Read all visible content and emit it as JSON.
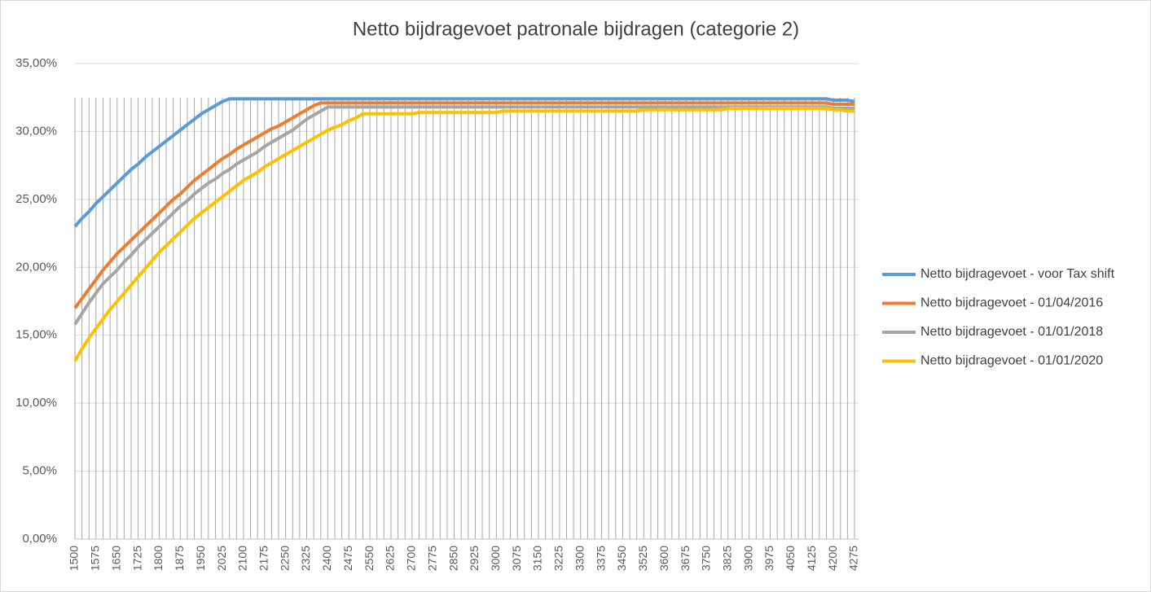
{
  "chart_data": {
    "type": "line",
    "title": "Netto bijdragevoet patronale bijdragen (categorie 2)",
    "categories": [
      "1500",
      null,
      null,
      "1575",
      null,
      null,
      "1650",
      null,
      null,
      "1725",
      null,
      null,
      "1800",
      null,
      null,
      "1875",
      null,
      null,
      "1950",
      null,
      null,
      "2025",
      null,
      null,
      "2100",
      null,
      null,
      "2175",
      null,
      null,
      "2250",
      null,
      null,
      "2325",
      null,
      null,
      "2400",
      null,
      null,
      "2475",
      null,
      null,
      "2550",
      null,
      null,
      "2625",
      null,
      null,
      "2700",
      null,
      null,
      "2775",
      null,
      null,
      "2850",
      null,
      null,
      "2925",
      null,
      null,
      "3000",
      null,
      null,
      "3075",
      null,
      null,
      "3150",
      null,
      null,
      "3225",
      null,
      null,
      "3300",
      null,
      null,
      "3375",
      null,
      null,
      "3450",
      null,
      null,
      "3525",
      null,
      null,
      "3600",
      null,
      null,
      "3675",
      null,
      null,
      "3750",
      null,
      null,
      "3825",
      null,
      null,
      "3900",
      null,
      null,
      "3975",
      null,
      null,
      "4050",
      null,
      null,
      "4125",
      null,
      null,
      "4200",
      null,
      null,
      "4275"
    ],
    "series": [
      {
        "name": "Netto bijdragevoet - voor Tax shift",
        "color": "#5b9bd5",
        "values": [
          23.0,
          23.6,
          24.1,
          24.7,
          25.2,
          25.7,
          26.2,
          26.7,
          27.2,
          27.6,
          28.1,
          28.5,
          28.9,
          29.3,
          29.7,
          30.1,
          30.5,
          30.9,
          31.3,
          31.6,
          31.9,
          32.2,
          32.4,
          32.4,
          32.4,
          32.4,
          32.4,
          32.4,
          32.4,
          32.4,
          32.4,
          32.4,
          32.4,
          32.4,
          32.4,
          32.4,
          32.4,
          32.4,
          32.4,
          32.4,
          32.4,
          32.4,
          32.4,
          32.4,
          32.4,
          32.4,
          32.4,
          32.4,
          32.4,
          32.4,
          32.4,
          32.4,
          32.4,
          32.4,
          32.4,
          32.4,
          32.4,
          32.4,
          32.4,
          32.4,
          32.4,
          32.4,
          32.4,
          32.4,
          32.4,
          32.4,
          32.4,
          32.4,
          32.4,
          32.4,
          32.4,
          32.4,
          32.4,
          32.4,
          32.4,
          32.4,
          32.4,
          32.4,
          32.4,
          32.4,
          32.4,
          32.4,
          32.4,
          32.4,
          32.4,
          32.4,
          32.4,
          32.4,
          32.4,
          32.4,
          32.4,
          32.4,
          32.4,
          32.4,
          32.4,
          32.4,
          32.4,
          32.4,
          32.4,
          32.4,
          32.4,
          32.4,
          32.4,
          32.4,
          32.4,
          32.4,
          32.4,
          32.4,
          32.3,
          32.3,
          32.3,
          32.2
        ]
      },
      {
        "name": "Netto bijdragevoet - 01/04/2016",
        "color": "#ed7d31",
        "values": [
          17.0,
          17.7,
          18.4,
          19.1,
          19.8,
          20.4,
          21.0,
          21.5,
          22.0,
          22.5,
          23.0,
          23.5,
          24.0,
          24.5,
          25.0,
          25.4,
          25.9,
          26.4,
          26.8,
          27.2,
          27.6,
          28.0,
          28.3,
          28.7,
          29.0,
          29.3,
          29.6,
          29.9,
          30.2,
          30.4,
          30.7,
          31.0,
          31.3,
          31.6,
          31.9,
          32.1,
          32.1,
          32.1,
          32.1,
          32.1,
          32.1,
          32.1,
          32.1,
          32.1,
          32.1,
          32.1,
          32.1,
          32.1,
          32.1,
          32.1,
          32.1,
          32.1,
          32.1,
          32.1,
          32.1,
          32.1,
          32.1,
          32.1,
          32.1,
          32.1,
          32.1,
          32.1,
          32.1,
          32.1,
          32.1,
          32.1,
          32.1,
          32.1,
          32.1,
          32.1,
          32.1,
          32.1,
          32.1,
          32.1,
          32.1,
          32.1,
          32.1,
          32.1,
          32.1,
          32.1,
          32.1,
          32.1,
          32.1,
          32.1,
          32.1,
          32.1,
          32.1,
          32.1,
          32.1,
          32.1,
          32.1,
          32.1,
          32.1,
          32.1,
          32.1,
          32.1,
          32.1,
          32.1,
          32.1,
          32.1,
          32.1,
          32.1,
          32.1,
          32.1,
          32.1,
          32.1,
          32.1,
          32.1,
          32.0,
          32.0,
          32.0,
          32.0
        ]
      },
      {
        "name": "Netto bijdragevoet - 01/01/2018",
        "color": "#a5a5a5",
        "values": [
          15.8,
          16.6,
          17.4,
          18.1,
          18.8,
          19.3,
          19.8,
          20.4,
          20.9,
          21.5,
          22.0,
          22.5,
          23.0,
          23.5,
          24.0,
          24.5,
          24.9,
          25.4,
          25.8,
          26.2,
          26.5,
          26.9,
          27.2,
          27.6,
          27.9,
          28.2,
          28.5,
          28.9,
          29.2,
          29.5,
          29.8,
          30.1,
          30.5,
          30.9,
          31.2,
          31.5,
          31.8,
          31.8,
          31.8,
          31.8,
          31.8,
          31.8,
          31.8,
          31.8,
          31.8,
          31.8,
          31.8,
          31.8,
          31.8,
          31.8,
          31.8,
          31.8,
          31.8,
          31.8,
          31.8,
          31.8,
          31.8,
          31.8,
          31.8,
          31.8,
          31.8,
          31.8,
          31.8,
          31.8,
          31.8,
          31.8,
          31.8,
          31.8,
          31.8,
          31.8,
          31.8,
          31.8,
          31.8,
          31.8,
          31.8,
          31.8,
          31.8,
          31.8,
          31.8,
          31.8,
          31.8,
          31.8,
          31.8,
          31.8,
          31.8,
          31.8,
          31.8,
          31.8,
          31.8,
          31.8,
          31.8,
          31.8,
          31.8,
          31.8,
          31.8,
          31.8,
          31.8,
          31.8,
          31.8,
          31.8,
          31.8,
          31.8,
          31.8,
          31.8,
          31.8,
          31.8,
          31.8,
          31.8,
          31.7,
          31.7,
          31.7,
          31.7
        ]
      },
      {
        "name": "Netto bijdragevoet - 01/01/2020",
        "color": "#ffc000",
        "values": [
          13.1,
          14.0,
          14.8,
          15.5,
          16.2,
          16.9,
          17.5,
          18.1,
          18.7,
          19.3,
          19.9,
          20.5,
          21.1,
          21.6,
          22.1,
          22.6,
          23.1,
          23.6,
          24.0,
          24.4,
          24.8,
          25.2,
          25.6,
          26.0,
          26.4,
          26.7,
          27.0,
          27.4,
          27.7,
          28.0,
          28.3,
          28.6,
          28.9,
          29.2,
          29.5,
          29.8,
          30.1,
          30.3,
          30.5,
          30.8,
          31.0,
          31.3,
          31.3,
          31.3,
          31.3,
          31.3,
          31.3,
          31.3,
          31.3,
          31.4,
          31.4,
          31.4,
          31.4,
          31.4,
          31.4,
          31.4,
          31.4,
          31.4,
          31.4,
          31.4,
          31.4,
          31.5,
          31.5,
          31.5,
          31.5,
          31.5,
          31.5,
          31.5,
          31.5,
          31.5,
          31.5,
          31.5,
          31.5,
          31.5,
          31.5,
          31.5,
          31.5,
          31.5,
          31.5,
          31.5,
          31.5,
          31.6,
          31.6,
          31.6,
          31.6,
          31.6,
          31.6,
          31.6,
          31.6,
          31.6,
          31.6,
          31.6,
          31.6,
          31.7,
          31.7,
          31.7,
          31.7,
          31.7,
          31.7,
          31.7,
          31.7,
          31.7,
          31.7,
          31.7,
          31.7,
          31.7,
          31.7,
          31.7,
          31.6,
          31.6,
          31.5,
          31.5
        ]
      }
    ],
    "ylim": [
      0,
      35
    ],
    "yticks": [
      {
        "value": 0,
        "label": "0,00%"
      },
      {
        "value": 5,
        "label": "5,00%"
      },
      {
        "value": 10,
        "label": "10,00%"
      },
      {
        "value": 15,
        "label": "15,00%"
      },
      {
        "value": 20,
        "label": "20,00%"
      },
      {
        "value": 25,
        "label": "25,00%"
      },
      {
        "value": 30,
        "label": "30,00%"
      },
      {
        "value": 35,
        "label": "35,00%"
      }
    ],
    "grid": true,
    "legend": "right"
  }
}
